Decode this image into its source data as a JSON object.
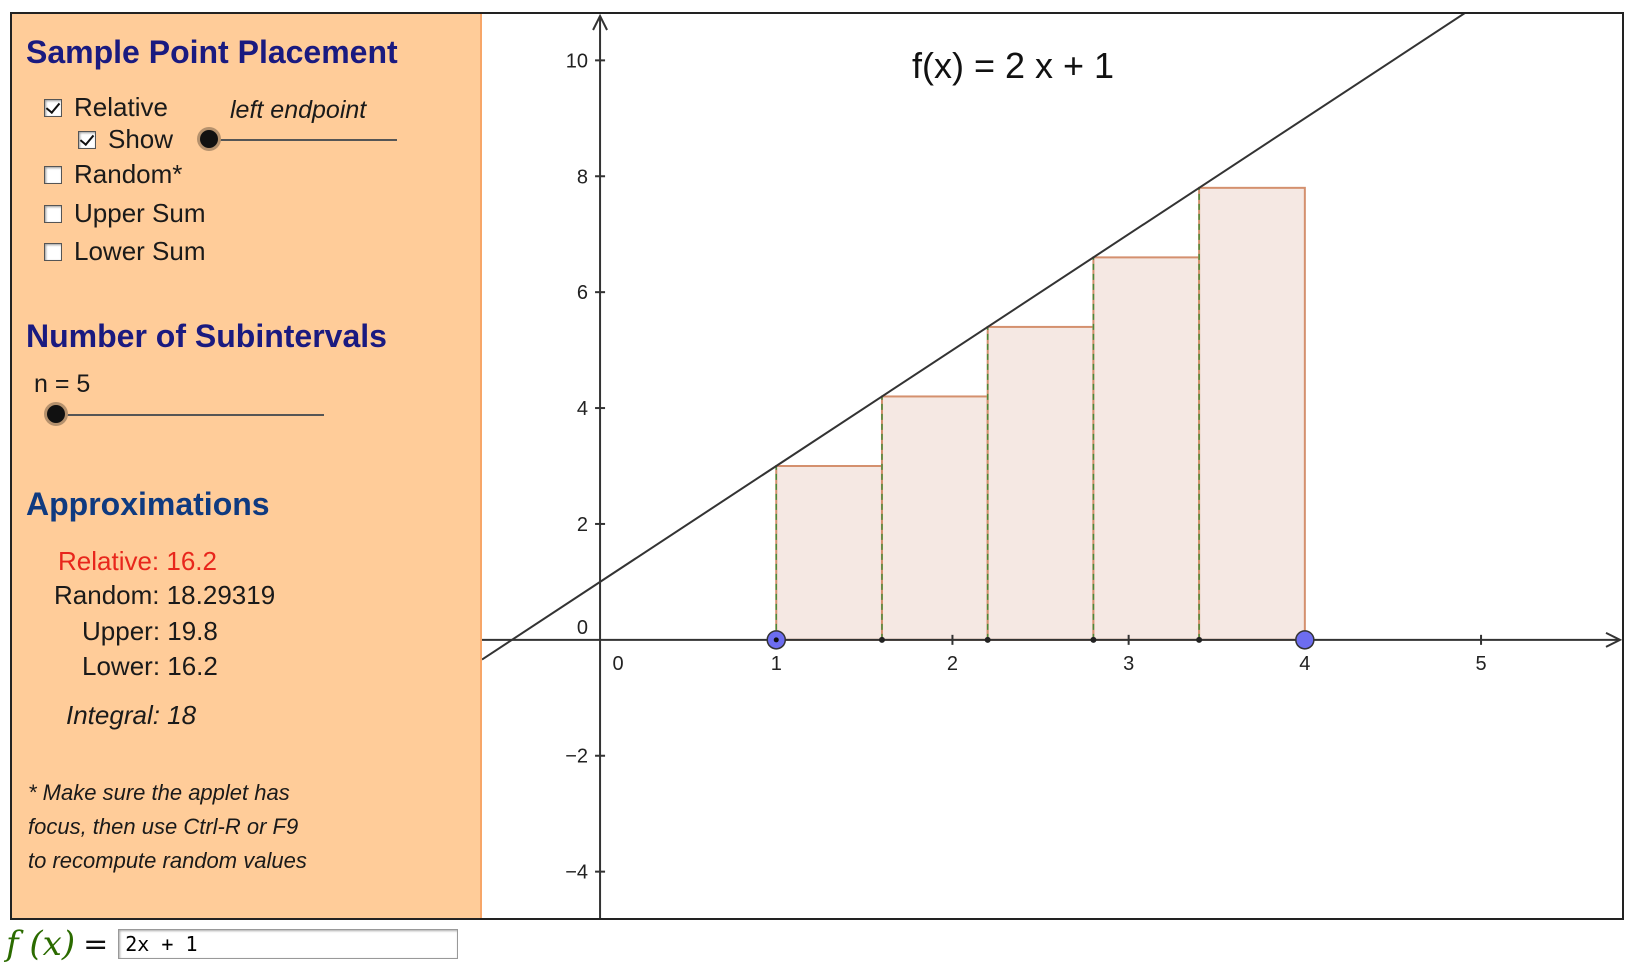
{
  "panel": {
    "sample_heading": "Sample Point Placement",
    "relative": {
      "label": "Relative",
      "checked": true
    },
    "show": {
      "label": "Show",
      "checked": true
    },
    "random": {
      "label": "Random*",
      "checked": false
    },
    "upper": {
      "label": "Upper Sum",
      "checked": false
    },
    "lower": {
      "label": "Lower Sum",
      "checked": false
    },
    "position_label": "left endpoint",
    "position_value": 0,
    "subintervals_heading": "Number of Subintervals",
    "n_label": "n = 5",
    "n_value": 5,
    "approx_heading": "Approximations",
    "relative_value": "Relative: 16.2",
    "random_value": "Random: 18.29319",
    "upper_value": "Upper: 19.8",
    "lower_value": "Lower: 16.2",
    "integral_value": "Integral:  18",
    "note_1": "* Make sure the applet has",
    "note_2": "focus, then use Ctrl-R or F9",
    "note_3": "to recompute random values",
    "colors": {
      "background": "#ffcc99",
      "heading": "#1a1a80",
      "relative": "#e8261c"
    }
  },
  "graph": {
    "function_label": "f(x) = 2 x + 1",
    "a": 1,
    "b": 4,
    "n": 5,
    "xlim": [
      -0.67,
      5.8
    ],
    "ylim": [
      -4.8,
      10.8
    ],
    "x_ticks": [
      "0",
      "1",
      "2",
      "3",
      "4",
      "5"
    ],
    "y_ticks": [
      "−4",
      "−2",
      "0",
      "2",
      "4",
      "6",
      "8",
      "10"
    ],
    "rect_fill": "#f5e8e3",
    "rect_stroke": "#d4906e",
    "endpoint_color": "#6d6df0"
  },
  "input_bar": {
    "label_f": "f",
    "label_x": "(x)",
    "equals": "=",
    "value": "2x + 1"
  }
}
